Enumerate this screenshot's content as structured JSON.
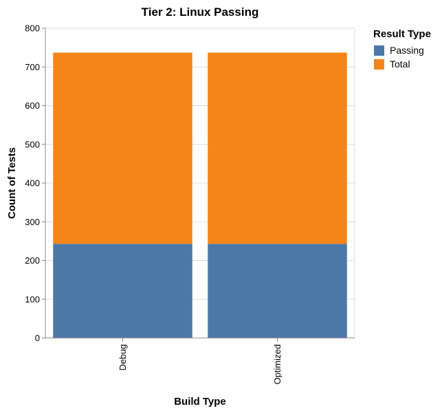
{
  "chart_data": {
    "type": "bar",
    "stacked": true,
    "title": "Tier 2: Linux Passing",
    "xlabel": "Build Type",
    "ylabel": "Count of Tests",
    "categories": [
      "Debug",
      "Optimized"
    ],
    "ylim": [
      0,
      800
    ],
    "yticks": [
      0,
      100,
      200,
      300,
      400,
      500,
      600,
      700,
      800
    ],
    "grid": true,
    "legend": {
      "title": "Result Type",
      "placement": "top-right"
    },
    "series": [
      {
        "name": "Passing",
        "color": "#4c78a8",
        "values": [
          243,
          243
        ]
      },
      {
        "name": "Total",
        "color": "#f58518",
        "values": [
          494,
          494
        ]
      }
    ]
  }
}
